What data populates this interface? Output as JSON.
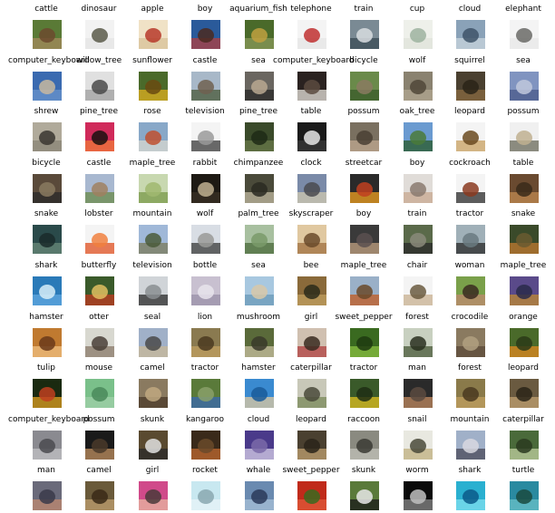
{
  "grid": {
    "rows": [
      [
        {
          "label": "cattle",
          "icon": "cattle-thumbnail",
          "colors": [
            "#5a7a36",
            "#a58b5c",
            "#6c4a2e"
          ]
        },
        {
          "label": "dinosaur",
          "icon": "dinosaur-thumbnail",
          "colors": [
            "#f2f2f2",
            "#e4e4e4",
            "#5a5a4a"
          ]
        },
        {
          "label": "apple",
          "icon": "apple-thumbnail",
          "colors": [
            "#f0e2c6",
            "#d8c198",
            "#b7392a"
          ]
        },
        {
          "label": "boy",
          "icon": "boy-thumbnail",
          "colors": [
            "#2a5a9a",
            "#b04040",
            "#4a2a20"
          ]
        },
        {
          "label": "aquarium_fish",
          "icon": "aquarium-fish-thumbnail",
          "colors": [
            "#4a6a2a",
            "#8a9a5a",
            "#c0a040"
          ]
        },
        {
          "label": "telephone",
          "icon": "telephone-thumbnail",
          "colors": [
            "#f4f4f4",
            "#e6e6e6",
            "#c03030"
          ]
        },
        {
          "label": "train",
          "icon": "train-thumbnail",
          "colors": [
            "#7a8a94",
            "#3a4a54",
            "#d8dde0"
          ]
        },
        {
          "label": "cup",
          "icon": "cup-thumbnail",
          "colors": [
            "#eef0ea",
            "#dfe3da",
            "#9eb3a0"
          ]
        },
        {
          "label": "cloud",
          "icon": "cloud-thumbnail",
          "colors": [
            "#8aa2b8",
            "#c8d4de",
            "#3e5468"
          ]
        },
        {
          "label": "elephant",
          "icon": "elephant-thumbnail",
          "colors": [
            "#f4f4f4",
            "#e8e8e8",
            "#6a6a66"
          ]
        }
      ],
      [
        {
          "label": "computer_keyboard",
          "icon": "computer-keyboard-thumbnail",
          "colors": [
            "#3a6ab0",
            "#6a94cc",
            "#c8b8a0"
          ]
        },
        {
          "label": "willow_tree",
          "icon": "willow-tree-thumbnail",
          "colors": [
            "#e0e0e0",
            "#a0a0a0",
            "#4a4a4a"
          ]
        },
        {
          "label": "sunflower",
          "icon": "sunflower-thumbnail",
          "colors": [
            "#4a6a2a",
            "#e0b020",
            "#6a4a10"
          ]
        },
        {
          "label": "castle",
          "icon": "castle-thumbnail",
          "colors": [
            "#a8b8c8",
            "#4a5a3a",
            "#706050"
          ]
        },
        {
          "label": "sea",
          "icon": "sea-thumbnail",
          "colors": [
            "#6a6660",
            "#2a2a28",
            "#b8a890"
          ]
        },
        {
          "label": "computer_keyboard",
          "icon": "computer-keyboard-thumbnail",
          "colors": [
            "#2a2220",
            "#e8e4dc",
            "#5a4a40"
          ]
        },
        {
          "label": "bicycle",
          "icon": "bicycle-thumbnail",
          "colors": [
            "#6a8a4a",
            "#3a5a2a",
            "#8a7a60"
          ]
        },
        {
          "label": "wolf",
          "icon": "wolf-thumbnail",
          "colors": [
            "#8a8270",
            "#b0a690",
            "#504838"
          ]
        },
        {
          "label": "squirrel",
          "icon": "squirrel-thumbnail",
          "colors": [
            "#4a4030",
            "#8a6a40",
            "#2a2418"
          ]
        },
        {
          "label": "sea",
          "icon": "sea-thumbnail",
          "colors": [
            "#8094c0",
            "#4a5a8a",
            "#c0c8dc"
          ]
        }
      ],
      [
        {
          "label": "shrew",
          "icon": "shrew-thumbnail",
          "colors": [
            "#b0aa9a",
            "#8a8476",
            "#3a3630"
          ]
        },
        {
          "label": "pine_tree",
          "icon": "pine-tree-thumbnail",
          "colors": [
            "#d02a5a",
            "#f07a3a",
            "#1a1010"
          ]
        },
        {
          "label": "rose",
          "icon": "rose-thumbnail",
          "colors": [
            "#88a8c8",
            "#d8d8d0",
            "#c05030"
          ]
        },
        {
          "label": "television",
          "icon": "television-thumbnail",
          "colors": [
            "#f4f4f4",
            "#3a3a3a",
            "#9a9a9a"
          ]
        },
        {
          "label": "pine_tree",
          "icon": "pine-tree-thumbnail",
          "colors": [
            "#3a4a2a",
            "#6a7a4a",
            "#1e2a16"
          ]
        },
        {
          "label": "table",
          "icon": "table-thumbnail",
          "colors": [
            "#1a1a1a",
            "#3a3a3a",
            "#e8e8e8"
          ]
        },
        {
          "label": "possum",
          "icon": "possum-thumbnail",
          "colors": [
            "#7a7060",
            "#c0a890",
            "#4a4034"
          ]
        },
        {
          "label": "oak_tree",
          "icon": "oak-tree-thumbnail",
          "colors": [
            "#6a9ad0",
            "#2a5a2a",
            "#4a7a3a"
          ]
        },
        {
          "label": "leopard",
          "icon": "leopard-thumbnail",
          "colors": [
            "#f4f4f4",
            "#c8a060",
            "#6a4a20"
          ]
        },
        {
          "label": "possum",
          "icon": "possum-thumbnail",
          "colors": [
            "#f0f0f0",
            "#6a6a5a",
            "#c0b090"
          ]
        }
      ],
      [
        {
          "label": "bicycle",
          "icon": "bicycle-thumbnail",
          "colors": [
            "#5a4a3a",
            "#2a2a2a",
            "#8a7a60"
          ]
        },
        {
          "label": "castle",
          "icon": "castle-thumbnail",
          "colors": [
            "#a8b8d0",
            "#6a8a4a",
            "#a08060"
          ]
        },
        {
          "label": "maple_tree",
          "icon": "maple-tree-thumbnail",
          "colors": [
            "#c8d8b0",
            "#7a9a4a",
            "#a0b870"
          ]
        },
        {
          "label": "rabbit",
          "icon": "rabbit-thumbnail",
          "colors": [
            "#1e1a14",
            "#3a3024",
            "#c0b090"
          ]
        },
        {
          "label": "chimpanzee",
          "icon": "chimpanzee-thumbnail",
          "colors": [
            "#4a4a3a",
            "#c0b8a0",
            "#2a2a22"
          ]
        },
        {
          "label": "clock",
          "icon": "clock-thumbnail",
          "colors": [
            "#7a8aa8",
            "#d0c8b0",
            "#4a4a50"
          ]
        },
        {
          "label": "streetcar",
          "icon": "streetcar-thumbnail",
          "colors": [
            "#2a2a2a",
            "#f0a020",
            "#c04020"
          ]
        },
        {
          "label": "boy",
          "icon": "boy-thumbnail",
          "colors": [
            "#e0dcd8",
            "#c8a890",
            "#8a7a70"
          ]
        },
        {
          "label": "cockroach",
          "icon": "cockroach-thumbnail",
          "colors": [
            "#f4f4f4",
            "#2a2a2a",
            "#8a3a20"
          ]
        },
        {
          "label": "table",
          "icon": "table-thumbnail",
          "colors": [
            "#6a4a30",
            "#c08a50",
            "#3a2a1a"
          ]
        }
      ],
      [
        {
          "label": "snake",
          "icon": "snake-thumbnail",
          "colors": [
            "#2a4a4a",
            "#6a8a7a",
            "#1a2a2a"
          ]
        },
        {
          "label": "lobster",
          "icon": "lobster-thumbnail",
          "colors": [
            "#f4f4f4",
            "#e05020",
            "#f08040"
          ]
        },
        {
          "label": "mountain",
          "icon": "mountain-thumbnail",
          "colors": [
            "#a0b8d8",
            "#7a7a5a",
            "#4a5a3a"
          ]
        },
        {
          "label": "wolf",
          "icon": "wolf-thumbnail",
          "colors": [
            "#d8dde4",
            "#3a3a3a",
            "#9a9a98"
          ]
        },
        {
          "label": "palm_tree",
          "icon": "palm-tree-thumbnail",
          "colors": [
            "#a8c0a0",
            "#4a6a3a",
            "#7a9a6a"
          ]
        },
        {
          "label": "skyscraper",
          "icon": "skyscraper-thumbnail",
          "colors": [
            "#e0c8a0",
            "#a07040",
            "#6a4a2a"
          ]
        },
        {
          "label": "boy",
          "icon": "boy-thumbnail",
          "colors": [
            "#3a3a3a",
            "#c0a080",
            "#5a5050"
          ]
        },
        {
          "label": "train",
          "icon": "train-thumbnail",
          "colors": [
            "#5a6a4a",
            "#2a2a2a",
            "#8a8a7a"
          ]
        },
        {
          "label": "tractor",
          "icon": "tractor-thumbnail",
          "colors": [
            "#a0b0b8",
            "#2a2a2a",
            "#6a7a80"
          ]
        },
        {
          "label": "snake",
          "icon": "snake-thumbnail",
          "colors": [
            "#3a4a2a",
            "#c07a30",
            "#6a5a30"
          ]
        }
      ],
      [
        {
          "label": "shark",
          "icon": "shark-thumbnail",
          "colors": [
            "#2a7ab8",
            "#60a8e0",
            "#d8eef8"
          ]
        },
        {
          "label": "butterfly",
          "icon": "butterfly-thumbnail",
          "colors": [
            "#3a5a2a",
            "#c03a20",
            "#e0c060"
          ]
        },
        {
          "label": "television",
          "icon": "television-thumbnail",
          "colors": [
            "#d0d4d8",
            "#2a2a2a",
            "#8a8e92"
          ]
        },
        {
          "label": "bottle",
          "icon": "bottle-thumbnail",
          "colors": [
            "#c8c0d0",
            "#9a90a8",
            "#e8e4ec"
          ]
        },
        {
          "label": "sea",
          "icon": "sea-thumbnail",
          "colors": [
            "#a8c8e0",
            "#6a9ab8",
            "#d8c8a8"
          ]
        },
        {
          "label": "bee",
          "icon": "bee-thumbnail",
          "colors": [
            "#8a6a3a",
            "#c0a060",
            "#2a2a1a"
          ]
        },
        {
          "label": "maple_tree",
          "icon": "maple-tree-thumbnail",
          "colors": [
            "#9ab0c8",
            "#c05a20",
            "#6a4a2a"
          ]
        },
        {
          "label": "chair",
          "icon": "chair-thumbnail",
          "colors": [
            "#f4f4f4",
            "#c8b090",
            "#6a5a40"
          ]
        },
        {
          "label": "woman",
          "icon": "woman-thumbnail",
          "colors": [
            "#7aa04a",
            "#c08a70",
            "#3a2a20"
          ]
        },
        {
          "label": "maple_tree",
          "icon": "maple-tree-thumbnail",
          "colors": [
            "#5a4a8a",
            "#c08a30",
            "#2a2a4a"
          ]
        }
      ],
      [
        {
          "label": "hamster",
          "icon": "hamster-thumbnail",
          "colors": [
            "#c07a30",
            "#f0c080",
            "#6a3a1a"
          ]
        },
        {
          "label": "otter",
          "icon": "otter-thumbnail",
          "colors": [
            "#d8d8d0",
            "#8a7a6a",
            "#4a4038"
          ]
        },
        {
          "label": "seal",
          "icon": "seal-thumbnail",
          "colors": [
            "#a0b0c8",
            "#c8b898",
            "#4a4a4a"
          ]
        },
        {
          "label": "lion",
          "icon": "lion-thumbnail",
          "colors": [
            "#8a7a50",
            "#c0a060",
            "#4a3a20"
          ]
        },
        {
          "label": "mushroom",
          "icon": "mushroom-thumbnail",
          "colors": [
            "#5a6a3a",
            "#c8c0a0",
            "#3a3a2a"
          ]
        },
        {
          "label": "girl",
          "icon": "girl-thumbnail",
          "colors": [
            "#d0c0b0",
            "#b04040",
            "#3a2a20"
          ]
        },
        {
          "label": "sweet_pepper",
          "icon": "sweet-pepper-thumbnail",
          "colors": [
            "#3a6a20",
            "#8ac040",
            "#1e3a10"
          ]
        },
        {
          "label": "forest",
          "icon": "forest-thumbnail",
          "colors": [
            "#c8d0c0",
            "#4a5a3a",
            "#2a3020"
          ]
        },
        {
          "label": "crocodile",
          "icon": "crocodile-thumbnail",
          "colors": [
            "#8a7a60",
            "#5a4a38",
            "#b0a080"
          ]
        },
        {
          "label": "orange",
          "icon": "orange-thumbnail",
          "colors": [
            "#4a6a2a",
            "#e08a20",
            "#2a3a18"
          ]
        }
      ],
      [
        {
          "label": "tulip",
          "icon": "tulip-thumbnail",
          "colors": [
            "#1a2a10",
            "#e0a020",
            "#c04020"
          ]
        },
        {
          "label": "mouse",
          "icon": "mouse-thumbnail",
          "colors": [
            "#7ac08a",
            "#a0d0a8",
            "#4a8a5a"
          ]
        },
        {
          "label": "camel",
          "icon": "camel-thumbnail",
          "colors": [
            "#8a7a60",
            "#4a3a28",
            "#c0a880"
          ]
        },
        {
          "label": "tractor",
          "icon": "tractor-thumbnail",
          "colors": [
            "#5a7a3a",
            "#3a6ab0",
            "#8aa06a"
          ]
        },
        {
          "label": "hamster",
          "icon": "hamster-thumbnail",
          "colors": [
            "#3a8ad0",
            "#e0c8a0",
            "#1a5a9a"
          ]
        },
        {
          "label": "caterpillar",
          "icon": "caterpillar-thumbnail",
          "colors": [
            "#c8c8b8",
            "#7a8a5a",
            "#4a4a3a"
          ]
        },
        {
          "label": "tractor",
          "icon": "tractor-thumbnail",
          "colors": [
            "#3a5a2a",
            "#e0c020",
            "#1e2e14"
          ]
        },
        {
          "label": "man",
          "icon": "man-thumbnail",
          "colors": [
            "#2a2a2a",
            "#c08a60",
            "#5a4a40"
          ]
        },
        {
          "label": "forest",
          "icon": "forest-thumbnail",
          "colors": [
            "#8a7a4a",
            "#c0a060",
            "#4a3a20"
          ]
        },
        {
          "label": "leopard",
          "icon": "leopard-thumbnail",
          "colors": [
            "#6a5a40",
            "#c0a070",
            "#2a2418"
          ]
        }
      ],
      [
        {
          "label": "computer_keyboard",
          "icon": "computer-keyboard-thumbnail",
          "colors": [
            "#8a8a90",
            "#c0c0c4",
            "#4a4a50"
          ]
        },
        {
          "label": "possum",
          "icon": "possum-thumbnail",
          "colors": [
            "#1a1a1a",
            "#c09060",
            "#4a3a2a"
          ]
        },
        {
          "label": "skunk",
          "icon": "skunk-thumbnail",
          "colors": [
            "#5a4a30",
            "#2a2a2a",
            "#e0e0e0"
          ]
        },
        {
          "label": "kangaroo",
          "icon": "kangaroo-thumbnail",
          "colors": [
            "#3a2a1a",
            "#c06a30",
            "#6a4a2a"
          ]
        },
        {
          "label": "cloud",
          "icon": "cloud-thumbnail",
          "colors": [
            "#4a3a8a",
            "#d8d0e8",
            "#7a6aa8"
          ]
        },
        {
          "label": "leopard",
          "icon": "leopard-thumbnail",
          "colors": [
            "#4a4030",
            "#c0a070",
            "#2a241a"
          ]
        },
        {
          "label": "raccoon",
          "icon": "raccoon-thumbnail",
          "colors": [
            "#8a8a80",
            "#c0c0b8",
            "#3a3a34"
          ]
        },
        {
          "label": "snail",
          "icon": "snail-thumbnail",
          "colors": [
            "#e8e8e0",
            "#c0b080",
            "#4a4a3a"
          ]
        },
        {
          "label": "mountain",
          "icon": "mountain-thumbnail",
          "colors": [
            "#a0b0c8",
            "#4a4a5a",
            "#d8d8e0"
          ]
        },
        {
          "label": "caterpillar",
          "icon": "caterpillar-thumbnail",
          "colors": [
            "#4a6a3a",
            "#c0d0a0",
            "#2a3a20"
          ]
        }
      ],
      [
        {
          "label": "man",
          "icon": "man-thumbnail",
          "colors": [
            "#6a6a7a",
            "#c08a70",
            "#3a3a4a"
          ]
        },
        {
          "label": "camel",
          "icon": "camel-thumbnail",
          "colors": [
            "#6a5a3a",
            "#c0a070",
            "#3a2a18"
          ]
        },
        {
          "label": "girl",
          "icon": "girl-thumbnail",
          "colors": [
            "#d04a8a",
            "#e8b8a0",
            "#4a3a3a"
          ]
        },
        {
          "label": "rocket",
          "icon": "rocket-thumbnail",
          "colors": [
            "#c8e8f0",
            "#e8f4f8",
            "#8aa8b0"
          ]
        },
        {
          "label": "whale",
          "icon": "whale-thumbnail",
          "colors": [
            "#6a8ab0",
            "#a8c0d8",
            "#2a3a5a"
          ]
        },
        {
          "label": "sweet_pepper",
          "icon": "sweet-pepper-thumbnail",
          "colors": [
            "#c02a1a",
            "#e05a3a",
            "#3a6a20"
          ]
        },
        {
          "label": "skunk",
          "icon": "skunk-thumbnail",
          "colors": [
            "#5a7a3a",
            "#1a1a1a",
            "#e8e8e8"
          ]
        },
        {
          "label": "worm",
          "icon": "worm-thumbnail",
          "colors": [
            "#0a0a0a",
            "#8a8a8a",
            "#c0c0c0"
          ]
        },
        {
          "label": "shark",
          "icon": "shark-thumbnail",
          "colors": [
            "#2ab0d0",
            "#80e0f0",
            "#0a5a8a"
          ]
        },
        {
          "label": "turtle",
          "icon": "turtle-thumbnail",
          "colors": [
            "#2a8aa0",
            "#6ac0c8",
            "#1a4a40"
          ]
        }
      ]
    ]
  }
}
